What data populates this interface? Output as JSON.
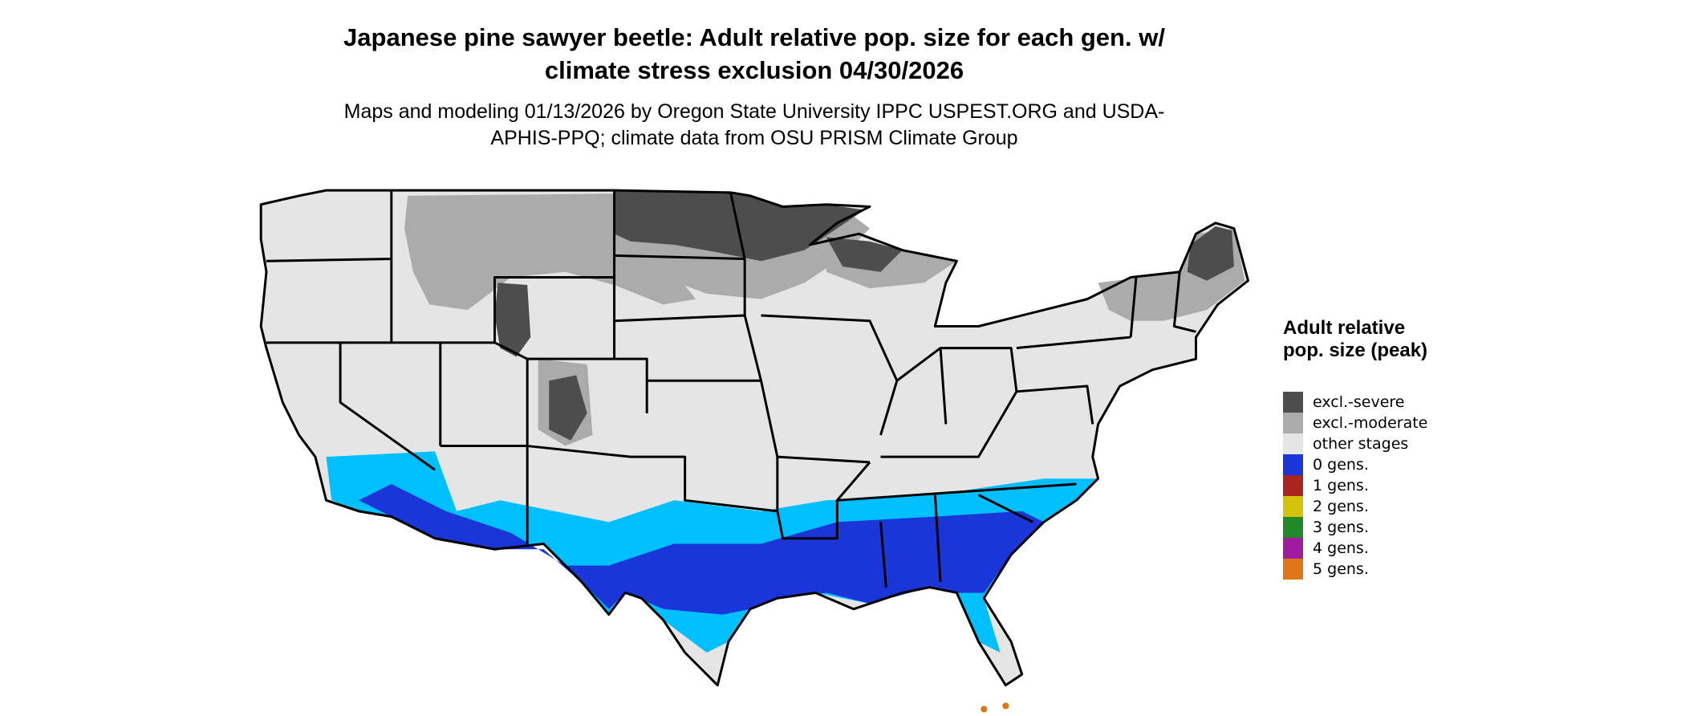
{
  "title": "Japanese pine sawyer beetle: Adult relative pop. size for each gen. w/ climate stress exclusion 04/30/2026",
  "subtitle": "Maps and modeling 01/13/2026 by Oregon State University IPPC USPEST.ORG and USDA-APHIS-PPQ; climate data from OSU PRISM Climate Group",
  "legend": {
    "title": "Adult relative pop. size (peak)",
    "items": [
      {
        "name": "excl.-severe",
        "color": "#4d4d4d"
      },
      {
        "name": "excl.-moderate",
        "color": "#ababab"
      },
      {
        "name": "other stages",
        "color": "#e5e5e5"
      },
      {
        "name": "0 gens.",
        "color": "#1a35d8"
      },
      {
        "name": "1 gens.",
        "color": "#a8241c"
      },
      {
        "name": "2 gens.",
        "color": "#d6c20c"
      },
      {
        "name": "3 gens.",
        "color": "#22892a"
      },
      {
        "name": "4 gens.",
        "color": "#a01c9e"
      },
      {
        "name": "5 gens.",
        "color": "#e0761a"
      }
    ]
  }
}
